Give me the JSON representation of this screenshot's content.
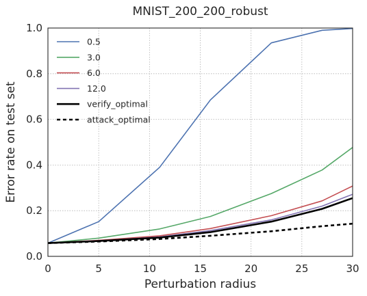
{
  "chart_data": {
    "type": "line",
    "title": "MNIST_200_200_robust",
    "xlabel": "Perturbation radius",
    "ylabel": "Error rate on test set",
    "xlim": [
      0,
      30
    ],
    "ylim": [
      0.0,
      1.0
    ],
    "xticks": [
      0,
      5,
      10,
      15,
      20,
      25,
      30
    ],
    "xtick_labels": [
      "0",
      "5",
      "10",
      "15",
      "20",
      "25",
      "30"
    ],
    "yticks": [
      0.0,
      0.2,
      0.4,
      0.6,
      0.8,
      1.0
    ],
    "ytick_labels": [
      "0.0",
      "0.2",
      "0.4",
      "0.6",
      "0.8",
      "1.0"
    ],
    "grid": true,
    "legend_position": "upper-left",
    "x": [
      0,
      5,
      11,
      16,
      22,
      27,
      30
    ],
    "series": [
      {
        "name": "0.5",
        "color": "#4c72b0",
        "style": "solid",
        "values": [
          0.058,
          0.152,
          0.39,
          0.685,
          0.935,
          0.99,
          0.998
        ]
      },
      {
        "name": "3.0",
        "color": "#55a868",
        "style": "solid",
        "values": [
          0.058,
          0.08,
          0.12,
          0.175,
          0.275,
          0.378,
          0.477
        ]
      },
      {
        "name": "6.0",
        "color": "#c44e52",
        "style": "solid",
        "values": [
          0.058,
          0.07,
          0.09,
          0.122,
          0.178,
          0.243,
          0.308
        ]
      },
      {
        "name": "12.0",
        "color": "#8172b2",
        "style": "solid",
        "values": [
          0.058,
          0.068,
          0.085,
          0.113,
          0.16,
          0.22,
          0.272
        ]
      },
      {
        "name": "verify_optimal",
        "color": "#000000",
        "style": "solid",
        "values": [
          0.058,
          0.067,
          0.082,
          0.106,
          0.152,
          0.208,
          0.255
        ]
      },
      {
        "name": "attack_optimal",
        "color": "#000000",
        "style": "dashed",
        "values": [
          0.058,
          0.065,
          0.076,
          0.09,
          0.11,
          0.132,
          0.143
        ]
      }
    ]
  }
}
